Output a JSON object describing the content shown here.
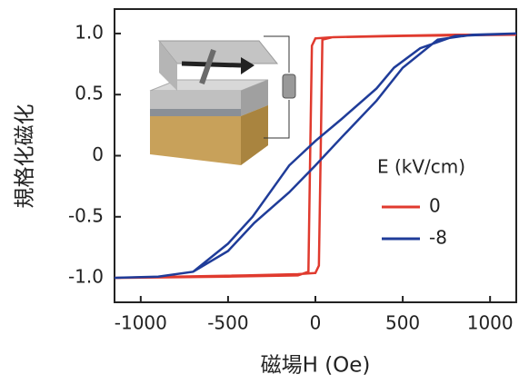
{
  "chart_data": {
    "type": "line",
    "x_label": "磁場H (Oe)",
    "y_label": "規格化磁化",
    "legend_title": "E (kV/cm)",
    "legend_position": "lower right",
    "xlim": [
      -1150,
      1150
    ],
    "xticks": [
      -1000,
      -500,
      0,
      500,
      1000
    ],
    "ylim": [
      -1.2,
      1.2
    ],
    "yticks": [
      {
        "value": 1,
        "label": "1.0"
      },
      0.5,
      0,
      -0.5,
      {
        "value": -1,
        "label": "-1.0"
      }
    ],
    "series": [
      {
        "name": "0",
        "color": "#e03a2e",
        "x": [
          1150,
          800,
          400,
          100,
          0,
          -20,
          -30,
          -40,
          -100,
          -500,
          -1150,
          -800,
          -400,
          -100,
          0,
          20,
          30,
          40,
          100,
          500,
          1150
        ],
        "values": [
          0.99,
          0.99,
          0.98,
          0.97,
          0.96,
          0.9,
          0,
          -0.95,
          -0.98,
          -0.99,
          -1.0,
          -0.99,
          -0.98,
          -0.97,
          -0.96,
          -0.9,
          0,
          0.95,
          0.97,
          0.98,
          0.99
        ]
      },
      {
        "name": "-8",
        "color": "#1f3c99",
        "x": [
          1150,
          800,
          600,
          450,
          350,
          150,
          0,
          -150,
          -360,
          -500,
          -700,
          -900,
          -1150,
          -900,
          -700,
          -500,
          -350,
          -150,
          0,
          150,
          350,
          500,
          700,
          900,
          1150
        ],
        "values": [
          1.0,
          0.98,
          0.88,
          0.72,
          0.55,
          0.3,
          0.12,
          -0.08,
          -0.5,
          -0.72,
          -0.95,
          -0.99,
          -1.0,
          -0.99,
          -0.95,
          -0.78,
          -0.55,
          -0.3,
          -0.08,
          0.15,
          0.45,
          0.72,
          0.95,
          0.99,
          1.0
        ]
      }
    ]
  }
}
